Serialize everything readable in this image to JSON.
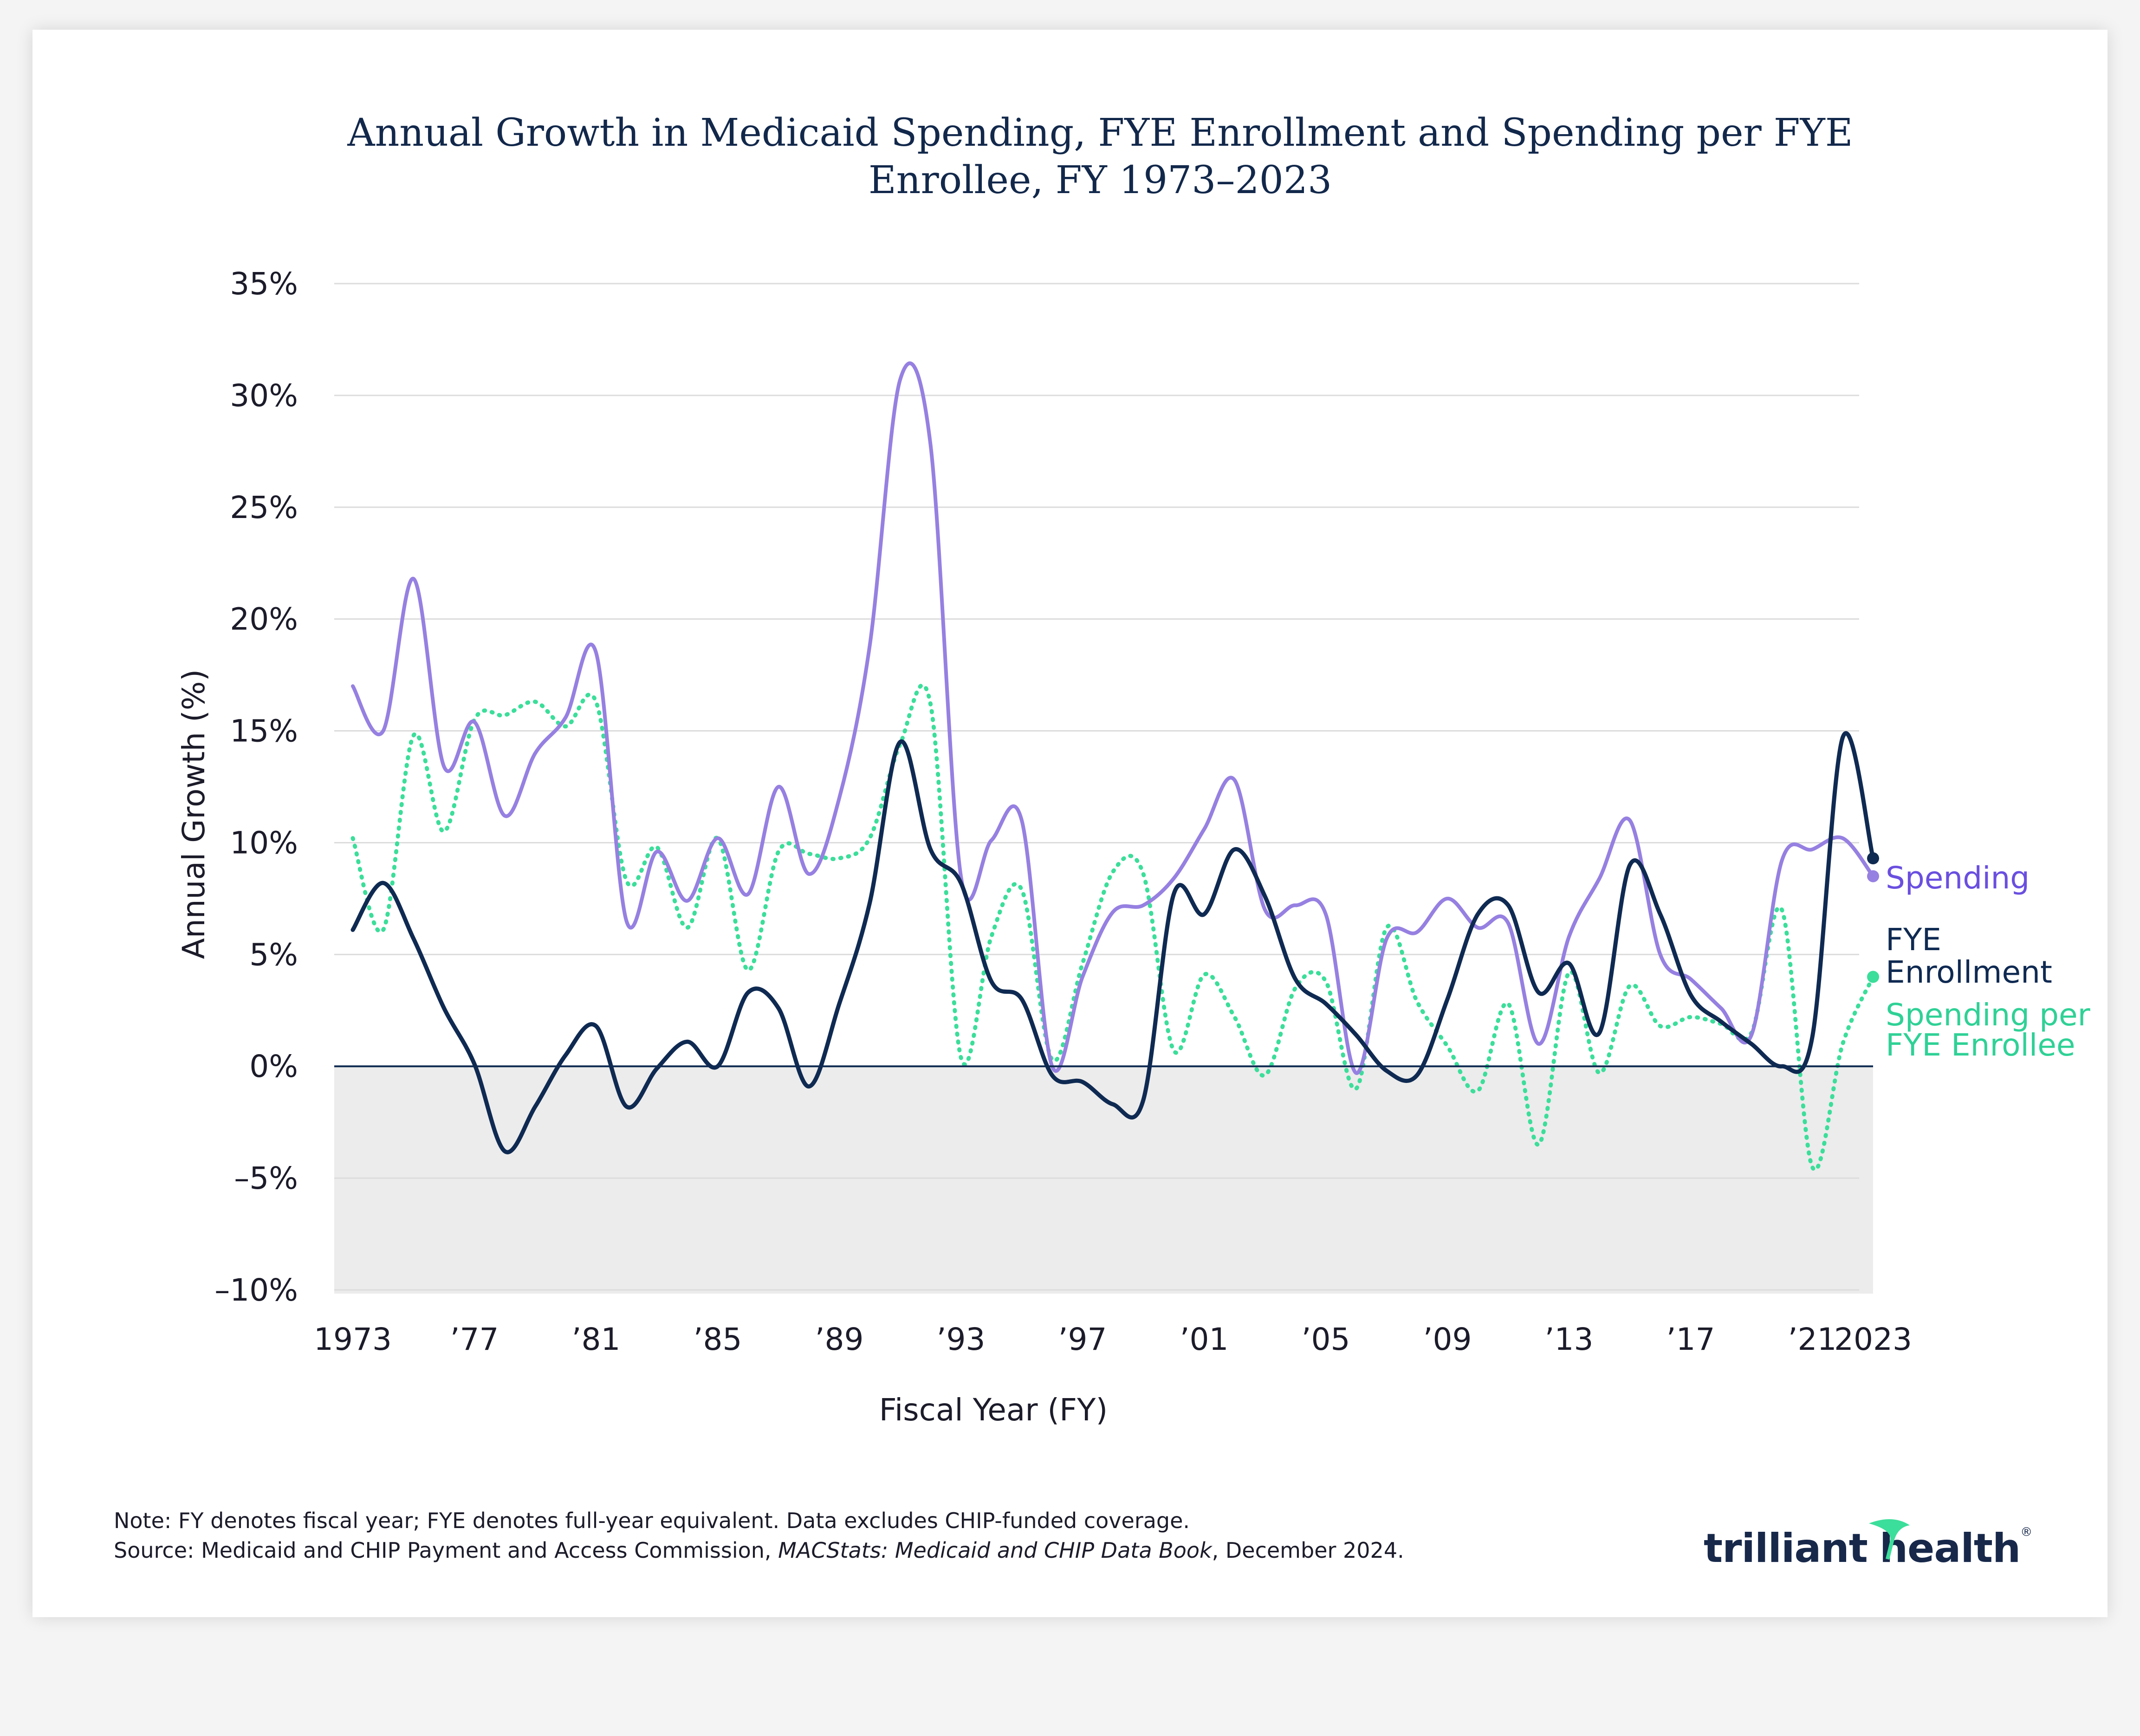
{
  "title_lines": [
    "Annual Growth in Medicaid Spending, FYE Enrollment and Spending per FYE",
    "Enrollee, FY 1973–2023"
  ],
  "colors": {
    "spending": "#9680e1",
    "spending_label": "#6a4fe0",
    "enrollment": "#0f2a52",
    "per_enrollee": "#3bde9a",
    "per_enrollee_label": "#2fd196",
    "negative_band": "#ececec",
    "grid": "#dcdcdc",
    "zero_line": "#0f2a52",
    "logo_accent": "#3bde9a"
  },
  "notes": {
    "note": "Note: FY denotes fiscal year; FYE denotes full-year equivalent. Data excludes CHIP-funded coverage.",
    "source_prefix": "Source: Medicaid and CHIP Payment and Access Commission, ",
    "source_title": "MACStats: Medicaid and CHIP Data Book",
    "source_suffix": ", December 2024."
  },
  "logo": {
    "part1": "trilliant",
    "part2": "health",
    "reg": "®"
  },
  "chart_data": {
    "type": "line",
    "xlabel": "Fiscal Year (FY)",
    "ylabel": "Annual Growth (%)",
    "ylim": [
      -10,
      35
    ],
    "xlim": [
      1973,
      2023
    ],
    "yticks": [
      35,
      30,
      25,
      20,
      15,
      10,
      5,
      0,
      -5,
      -10
    ],
    "ytick_labels": [
      "35%",
      "30%",
      "25%",
      "20%",
      "15%",
      "10%",
      "5%",
      "0%",
      "–5%",
      "–10%"
    ],
    "xticks": [
      1973,
      1977,
      1981,
      1985,
      1989,
      1993,
      1997,
      2001,
      2005,
      2009,
      2013,
      2017,
      2021,
      2023
    ],
    "xtick_labels": [
      "1973",
      "’77",
      "’81",
      "’85",
      "’89",
      "’93",
      "’97",
      "’01",
      "’05",
      "’09",
      "’13",
      "’17",
      "’21",
      "2023"
    ],
    "x": [
      1973,
      1974,
      1975,
      1976,
      1977,
      1978,
      1979,
      1980,
      1981,
      1982,
      1983,
      1984,
      1985,
      1986,
      1987,
      1988,
      1989,
      1990,
      1991,
      1992,
      1993,
      1994,
      1995,
      1996,
      1997,
      1998,
      1999,
      2000,
      2001,
      2002,
      2003,
      2004,
      2005,
      2006,
      2007,
      2008,
      2009,
      2010,
      2011,
      2012,
      2013,
      2014,
      2015,
      2016,
      2017,
      2018,
      2019,
      2020,
      2021,
      2022,
      2023
    ],
    "series": [
      {
        "name": "Spending",
        "style": "solid",
        "label_lines": [
          "Spending"
        ],
        "values": [
          17.0,
          15.0,
          21.8,
          13.4,
          15.4,
          11.2,
          14.0,
          15.6,
          18.5,
          6.5,
          9.6,
          7.4,
          10.2,
          7.7,
          12.5,
          8.6,
          12.0,
          18.8,
          30.7,
          27.8,
          8.5,
          10.1,
          11.0,
          0.0,
          4.0,
          6.9,
          7.2,
          8.4,
          10.6,
          12.8,
          7.0,
          7.2,
          6.8,
          -0.3,
          5.7,
          6.0,
          7.5,
          6.2,
          6.4,
          1.0,
          5.8,
          8.4,
          11.0,
          5.0,
          3.9,
          2.6,
          1.4,
          9.2,
          9.7,
          10.2,
          8.5
        ]
      },
      {
        "name": "FYE Enrollment",
        "style": "solid",
        "label_lines": [
          "FYE",
          "Enrollment"
        ],
        "values": [
          6.1,
          8.2,
          5.7,
          2.6,
          0.1,
          -3.8,
          -1.8,
          0.5,
          1.8,
          -1.8,
          -0.1,
          1.1,
          0.0,
          3.3,
          2.6,
          -0.9,
          2.8,
          7.3,
          14.5,
          9.7,
          8.2,
          3.8,
          3.0,
          -0.4,
          -0.7,
          -1.7,
          -1.5,
          7.7,
          6.8,
          9.7,
          7.6,
          3.9,
          2.8,
          1.4,
          -0.2,
          -0.4,
          3.0,
          6.8,
          7.2,
          3.3,
          4.6,
          1.5,
          9.0,
          6.8,
          3.2,
          2.0,
          1.0,
          0.0,
          1.3,
          14.7,
          9.3
        ]
      },
      {
        "name": "Spending per FYE Enrollee",
        "style": "dotted",
        "label_lines": [
          "Spending per",
          "FYE Enrollee"
        ],
        "values": [
          10.2,
          6.1,
          14.8,
          10.5,
          15.5,
          15.7,
          16.3,
          15.2,
          16.3,
          8.3,
          9.8,
          6.2,
          10.2,
          4.3,
          9.6,
          9.5,
          9.3,
          10.2,
          14.4,
          16.2,
          0.4,
          5.8,
          7.9,
          0.3,
          4.6,
          8.7,
          8.6,
          0.7,
          4.1,
          2.2,
          -0.4,
          3.5,
          3.8,
          -1.0,
          6.2,
          2.9,
          0.9,
          -1.1,
          2.8,
          -3.5,
          4.2,
          -0.3,
          3.6,
          1.8,
          2.2,
          1.9,
          1.5,
          7.0,
          -4.5,
          1.0,
          4.0
        ]
      }
    ]
  }
}
